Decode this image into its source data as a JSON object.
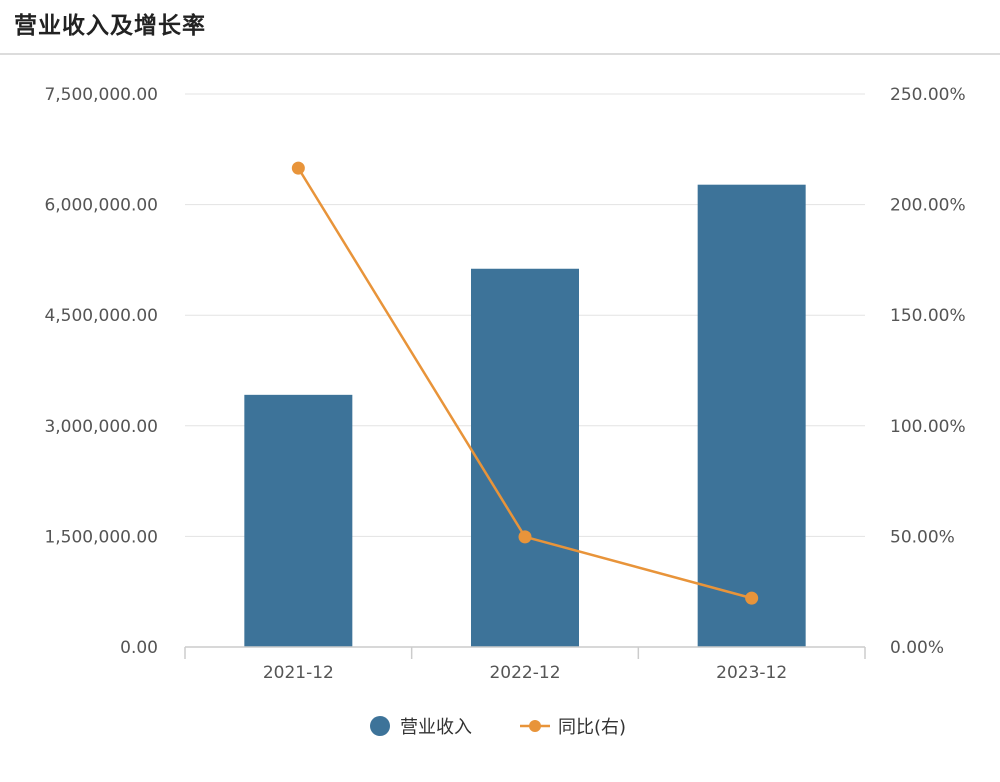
{
  "header": {
    "title": "营业收入及增长率"
  },
  "chart_data": {
    "type": "bar",
    "categories": [
      "2021-12",
      "2022-12",
      "2023-12"
    ],
    "series": [
      {
        "name": "营业收入",
        "kind": "bar",
        "axis": "left",
        "color": "#3d7399",
        "values": [
          3420000,
          5130000,
          6270000
        ]
      },
      {
        "name": "同比(右)",
        "kind": "line",
        "axis": "right",
        "color": "#e8943a",
        "values": [
          216.5,
          49.8,
          22.1
        ]
      }
    ],
    "y_left": {
      "ylim": [
        0,
        7500000
      ],
      "ticks": [
        0,
        1500000,
        3000000,
        4500000,
        6000000,
        7500000
      ],
      "tick_labels": [
        "0.00",
        "1,500,000.00",
        "3,000,000.00",
        "4,500,000.00",
        "6,000,000.00",
        "7,500,000.00"
      ]
    },
    "y_right": {
      "ylim": [
        0,
        250
      ],
      "ticks": [
        0,
        50,
        100,
        150,
        200,
        250
      ],
      "tick_labels": [
        "0.00%",
        "50.00%",
        "100.00%",
        "150.00%",
        "200.00%",
        "250.00%"
      ]
    },
    "grid": true,
    "legend_position": "bottom-center"
  }
}
